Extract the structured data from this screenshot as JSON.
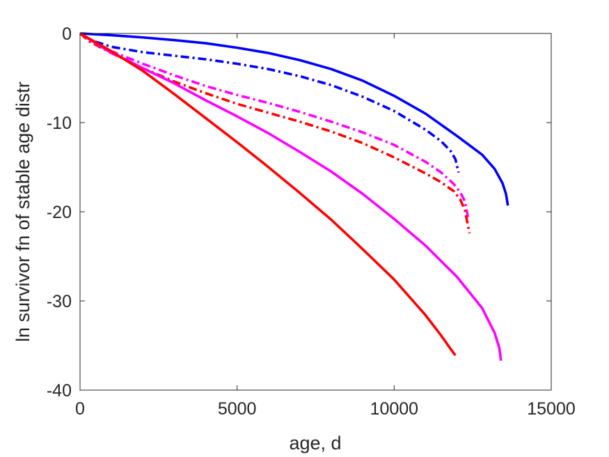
{
  "chart_data": {
    "type": "line",
    "title": "",
    "xlabel": "age, d",
    "ylabel": "ln survivor fn of stable age distr",
    "xlim": [
      0,
      15000
    ],
    "ylim": [
      -40,
      0
    ],
    "xticks": [
      0,
      5000,
      10000,
      15000
    ],
    "xtick_labels": [
      "0",
      "5000",
      "10000",
      "15000"
    ],
    "yticks": [
      0,
      -10,
      -20,
      -30,
      -40
    ],
    "ytick_labels": [
      "0",
      "-10",
      "-20",
      "-30",
      "-40"
    ],
    "grid": false,
    "series": [
      {
        "color": "#0000ff",
        "line_style": "solid",
        "x": [
          0,
          1000,
          2000,
          3000,
          4000,
          5000,
          6000,
          7000,
          8000,
          9000,
          10000,
          11000,
          12000,
          12800,
          13200,
          13450,
          13560,
          13620
        ],
        "y": [
          0,
          -0.2,
          -0.45,
          -0.75,
          -1.1,
          -1.6,
          -2.2,
          -3.0,
          -4.0,
          -5.3,
          -7.0,
          -9.0,
          -11.5,
          -13.6,
          -15.2,
          -16.8,
          -18.0,
          -19.3
        ]
      },
      {
        "color": "#0000ff",
        "line_style": "dashdot",
        "x": [
          0,
          300,
          1000,
          2000,
          3000,
          4000,
          5000,
          6000,
          7000,
          8000,
          9000,
          10000,
          11000,
          11500,
          11800,
          11950,
          12050
        ],
        "y": [
          0,
          -0.7,
          -1.5,
          -2.1,
          -2.5,
          -2.9,
          -3.4,
          -4.0,
          -4.8,
          -5.8,
          -7.1,
          -8.7,
          -10.8,
          -12.1,
          -13.2,
          -14.1,
          -15.6
        ]
      },
      {
        "color": "#ff00ff",
        "line_style": "dashdot",
        "x": [
          0,
          300,
          1000,
          2000,
          3000,
          4000,
          5000,
          6000,
          7000,
          8000,
          9000,
          10000,
          11000,
          11500,
          11900,
          12100,
          12250,
          12350
        ],
        "y": [
          0,
          -0.8,
          -2.0,
          -3.4,
          -4.7,
          -5.9,
          -6.9,
          -7.8,
          -8.8,
          -9.9,
          -11.1,
          -12.5,
          -14.4,
          -15.6,
          -16.9,
          -17.8,
          -18.8,
          -20.6
        ]
      },
      {
        "color": "#ff0000",
        "line_style": "dashdot",
        "x": [
          0,
          300,
          1000,
          2000,
          3000,
          4000,
          5000,
          6000,
          7000,
          8000,
          9000,
          10000,
          11000,
          11500,
          11900,
          12100,
          12250,
          12400
        ],
        "y": [
          0,
          -0.9,
          -2.2,
          -3.9,
          -5.4,
          -6.7,
          -7.9,
          -8.9,
          -9.9,
          -11.0,
          -12.3,
          -13.9,
          -15.7,
          -16.7,
          -17.7,
          -18.6,
          -19.8,
          -22.4
        ]
      },
      {
        "color": "#ff00ff",
        "line_style": "solid",
        "x": [
          0,
          500,
          1000,
          1500,
          2000,
          3000,
          4000,
          5000,
          6000,
          7000,
          8000,
          9000,
          10000,
          11000,
          12000,
          12800,
          13200,
          13350,
          13400
        ],
        "y": [
          0,
          -1.1,
          -2.2,
          -3.0,
          -3.9,
          -5.6,
          -7.5,
          -9.3,
          -11.2,
          -13.3,
          -15.5,
          -18.0,
          -20.8,
          -23.8,
          -27.3,
          -30.8,
          -33.6,
          -35.3,
          -36.7
        ]
      },
      {
        "color": "#ff0000",
        "line_style": "solid",
        "x": [
          0,
          500,
          1000,
          2000,
          3000,
          4000,
          5000,
          6000,
          7000,
          8000,
          9000,
          10000,
          11000,
          11500,
          11800,
          11950
        ],
        "y": [
          0,
          -1.0,
          -2.0,
          -4.2,
          -6.8,
          -9.5,
          -12.2,
          -15.0,
          -17.9,
          -20.9,
          -24.2,
          -27.6,
          -31.6,
          -33.9,
          -35.4,
          -36.1
        ]
      }
    ]
  }
}
